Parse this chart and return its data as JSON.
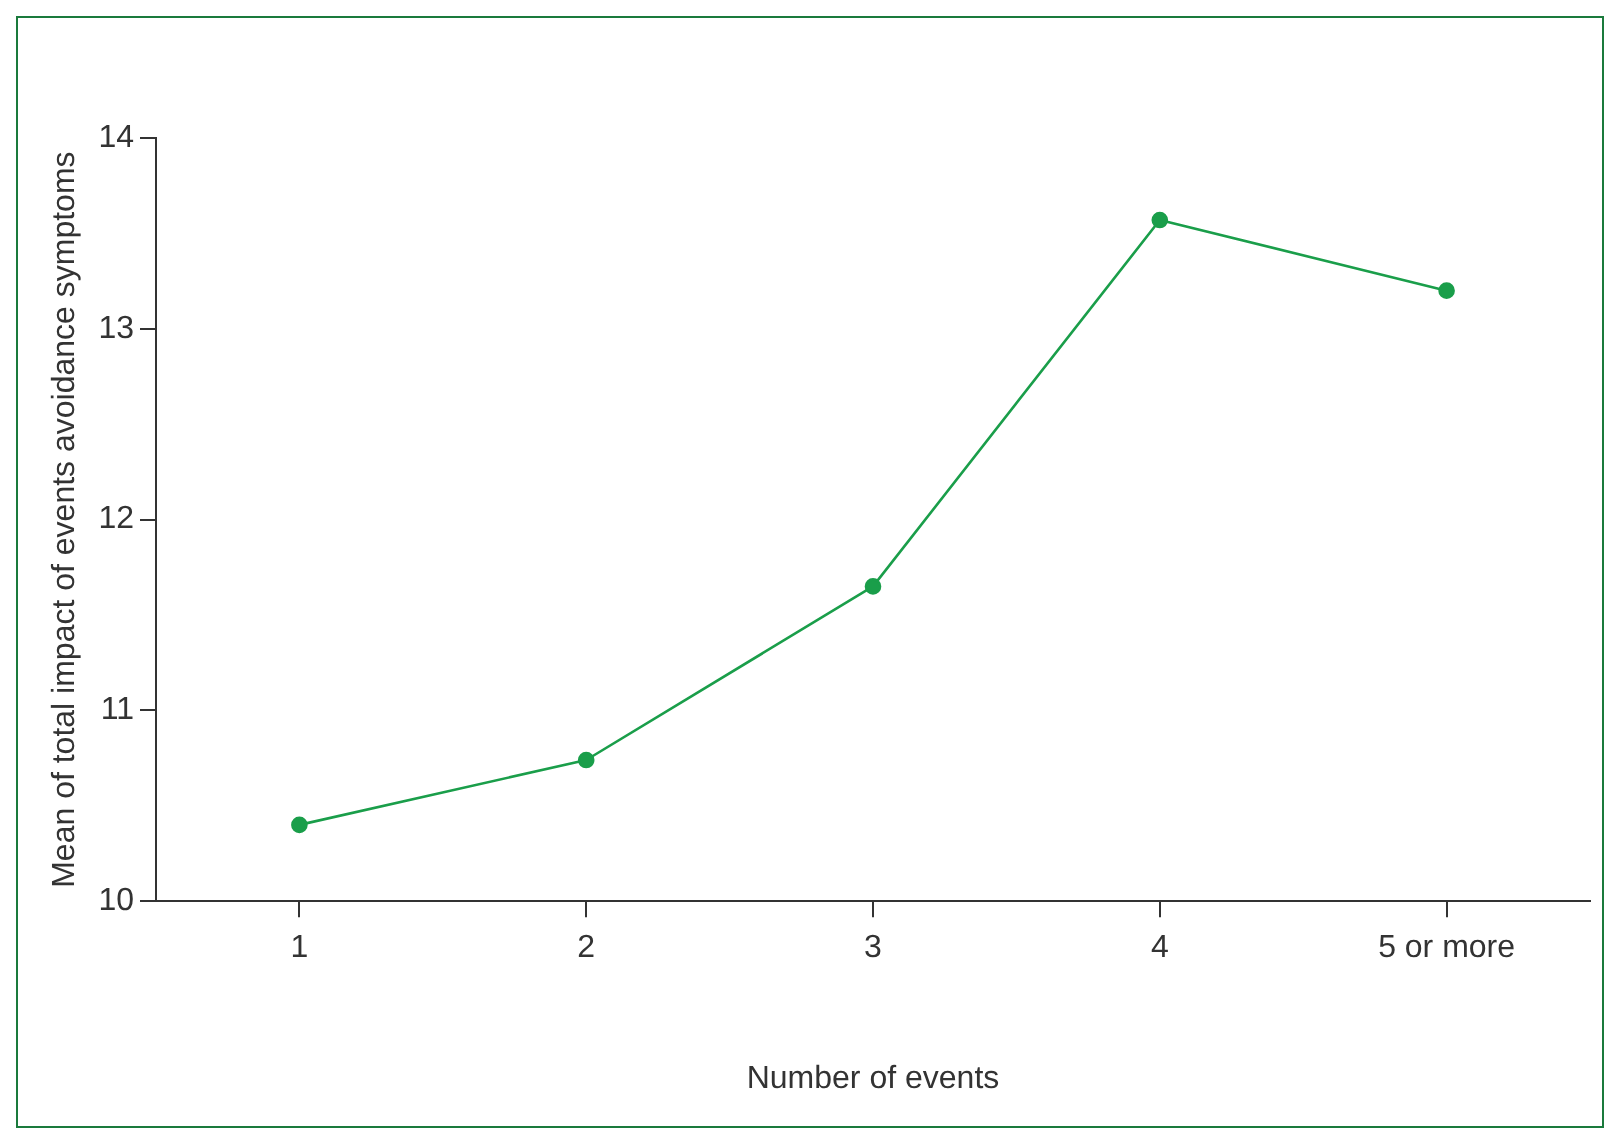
{
  "chart_data": {
    "type": "line",
    "xlabel": "Number of events",
    "ylabel": "Mean of total impact of events avoidance symptoms",
    "categories": [
      "1",
      "2",
      "3",
      "4",
      "5 or more"
    ],
    "series": [
      {
        "color": "#1a9e4a",
        "values": [
          10.4,
          10.74,
          11.65,
          13.57,
          13.2
        ]
      }
    ],
    "ylim": [
      10,
      14
    ],
    "yticks": [
      10,
      11,
      12,
      13,
      14
    ],
    "grid": false,
    "legend": false,
    "marker": "circle",
    "line_style": "solid"
  }
}
